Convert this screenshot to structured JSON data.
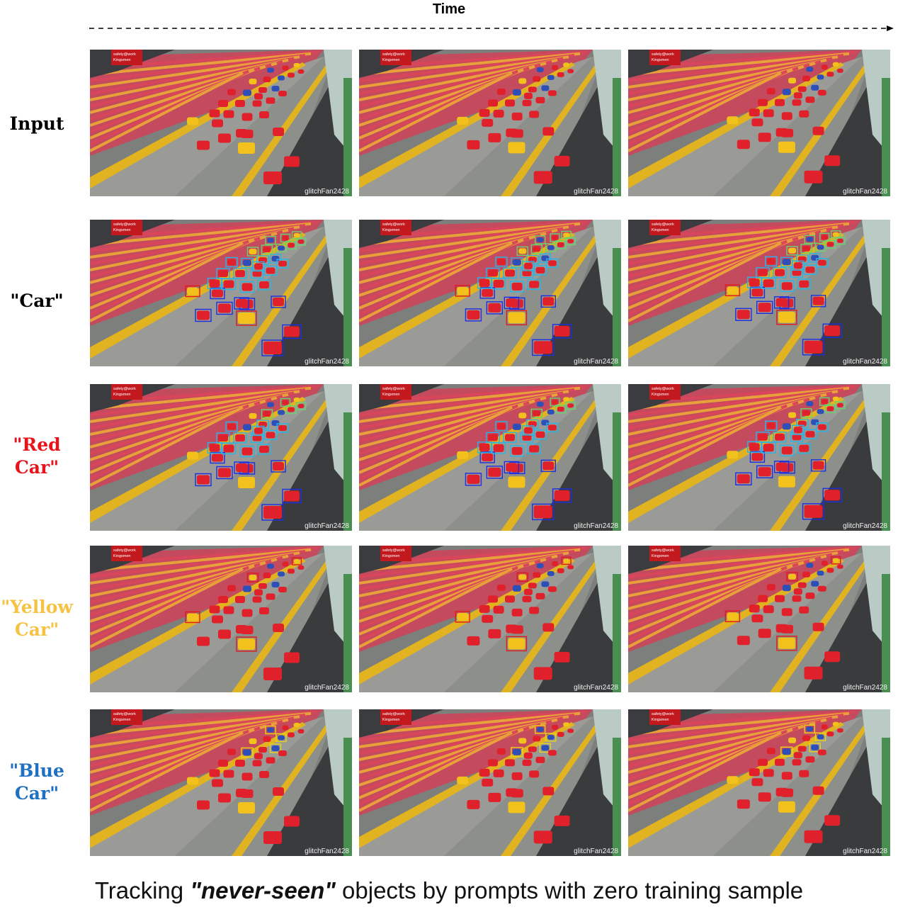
{
  "time_label": "Time",
  "rows": [
    {
      "label_lines": [
        "Input"
      ],
      "color": "#000000",
      "boxes": "none"
    },
    {
      "label_lines": [
        "\"Car\""
      ],
      "color": "#000000",
      "boxes": "all"
    },
    {
      "label_lines": [
        "\"Red",
        "Car\""
      ],
      "color": "#e8141b",
      "boxes": "red"
    },
    {
      "label_lines": [
        "\"Yellow",
        "Car\""
      ],
      "color": "#f5c242",
      "boxes": "yellow"
    },
    {
      "label_lines": [
        "\"Blue",
        "Car\""
      ],
      "color": "#1f6fc2",
      "boxes": "blue"
    }
  ],
  "frame_texts": {
    "banner_line1": "safety@work",
    "banner_line2": "Kingsmen",
    "watermark": "glitchFan2428"
  },
  "caption": {
    "before": "Tracking ",
    "emphasis": "\"never-seen\"",
    "after": " objects by prompts with zero training sample"
  },
  "colors": {
    "red_car": "#e0202a",
    "yellow_car": "#f3c11b",
    "blue_car": "#2e4fb8",
    "box_blue": "#1e2ee0",
    "box_red": "#e01a1a",
    "box_cyan": "#2ab3e6",
    "box_green": "#6bd26b",
    "box_yellow": "#e8d21a"
  }
}
